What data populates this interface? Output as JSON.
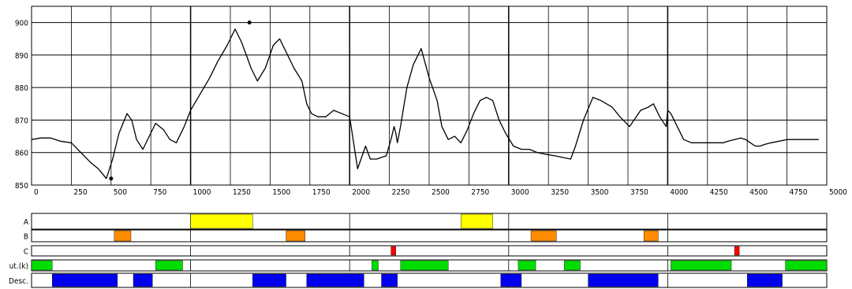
{
  "chart_data": {
    "type": "line",
    "title": "",
    "xlabel": "",
    "ylabel": "",
    "xlim": [
      0,
      5000
    ],
    "ylim": [
      850,
      905
    ],
    "x_ticks": [
      0,
      250,
      500,
      750,
      1000,
      1250,
      1500,
      1750,
      2000,
      2250,
      2500,
      2750,
      3000,
      3250,
      3500,
      3750,
      4000,
      4250,
      4500,
      4750,
      5000
    ],
    "x_tick_labels": [
      "0",
      "250",
      "500",
      "750",
      "1000",
      "1250",
      "1500",
      "1750",
      "2000",
      "2250",
      "2500",
      "2750",
      "3000",
      "3250",
      "3500",
      "3750",
      "4000",
      "4250",
      "4500",
      "4750",
      "5000"
    ],
    "y_ticks": [
      850,
      860,
      870,
      880,
      890,
      900
    ],
    "y_tick_labels": [
      "850",
      "860",
      "870",
      "880",
      "890",
      "900"
    ],
    "grid": true,
    "series": [
      {
        "name": "",
        "color": "#000000",
        "x": [
          0,
          60,
          120,
          180,
          250,
          310,
          370,
          420,
          470,
          510,
          550,
          600,
          630,
          660,
          700,
          740,
          780,
          830,
          870,
          910,
          960,
          1000,
          1060,
          1120,
          1170,
          1230,
          1280,
          1320,
          1350,
          1380,
          1420,
          1470,
          1520,
          1560,
          1600,
          1650,
          1700,
          1730,
          1760,
          1800,
          1850,
          1900,
          1950,
          2000,
          2050,
          2100,
          2130,
          2170,
          2200,
          2230,
          2260,
          2280,
          2290,
          2300,
          2320,
          2340,
          2360,
          2400,
          2450,
          2500,
          2550,
          2580,
          2620,
          2660,
          2700,
          2740,
          2780,
          2820,
          2860,
          2900,
          2940,
          2980,
          3030,
          3080,
          3130,
          3180,
          3230,
          3290,
          3340,
          3390,
          3420,
          3470,
          3530,
          3580,
          3650,
          3700,
          3760,
          3830,
          3880,
          3910,
          3950,
          3990,
          4000,
          4020,
          4060,
          4100,
          4150,
          4200,
          4250,
          4300,
          4350,
          4380,
          4420,
          4460,
          4490,
          4520,
          4550,
          4580,
          4610,
          4650,
          4700,
          4750,
          4800,
          4850,
          4900,
          4950
        ],
        "y": [
          864,
          864.5,
          864.5,
          863.5,
          863,
          860,
          857,
          855,
          852,
          858,
          866,
          872,
          870,
          864,
          861,
          865,
          869,
          867,
          864,
          863,
          868,
          873,
          878,
          883,
          888,
          893,
          898,
          894,
          890,
          886,
          882,
          886,
          893,
          895,
          891,
          886,
          882,
          875,
          872,
          871,
          871,
          873,
          872,
          871,
          855,
          862,
          858,
          858,
          858.5,
          859,
          864,
          868,
          866,
          863,
          868,
          874,
          880,
          887,
          892,
          883,
          876,
          868,
          864,
          865,
          863,
          867,
          872,
          876,
          877,
          876,
          870,
          866,
          862,
          861,
          861,
          860,
          859.5,
          859,
          858.5,
          858,
          862,
          870,
          877,
          876,
          874,
          871,
          868,
          873,
          874,
          875,
          871,
          868,
          873,
          872,
          868,
          864,
          863,
          863,
          863,
          863,
          863,
          863.5,
          864,
          864.5,
          864,
          863,
          862,
          862,
          862.5,
          863,
          863.5,
          864,
          864,
          864,
          864,
          864
        ],
        "marker_points": [
          [
            500,
            852
          ],
          [
            1370,
            900
          ]
        ]
      }
    ],
    "bar_rows": [
      {
        "label": "A",
        "fill": "#ffff00",
        "segments": [
          [
            1000,
            1390
          ],
          [
            2700,
            2900
          ]
        ]
      },
      {
        "label": "B",
        "fill": "#ff8c00",
        "segments": [
          [
            520,
            625
          ],
          [
            1600,
            1720
          ],
          [
            3140,
            3300
          ],
          [
            3850,
            3940
          ]
        ]
      },
      {
        "label": "C",
        "fill": "#ff0000",
        "segments": [
          [
            2260,
            2290
          ],
          [
            4420,
            4450
          ]
        ]
      },
      {
        "label": "ut.(k)",
        "fill": "#00dd00",
        "segments": [
          [
            0,
            130
          ],
          [
            780,
            950
          ],
          [
            2140,
            2180
          ],
          [
            2320,
            2620
          ],
          [
            3060,
            3170
          ],
          [
            3350,
            3450
          ],
          [
            4020,
            4400
          ],
          [
            4740,
            5000
          ]
        ]
      },
      {
        "label": "Desc.",
        "fill": "#0000ee",
        "segments": [
          [
            130,
            540
          ],
          [
            640,
            760
          ],
          [
            1390,
            1600
          ],
          [
            1730,
            2090
          ],
          [
            2200,
            2300
          ],
          [
            2950,
            3080
          ],
          [
            3500,
            3940
          ],
          [
            4500,
            4720
          ]
        ]
      }
    ]
  }
}
